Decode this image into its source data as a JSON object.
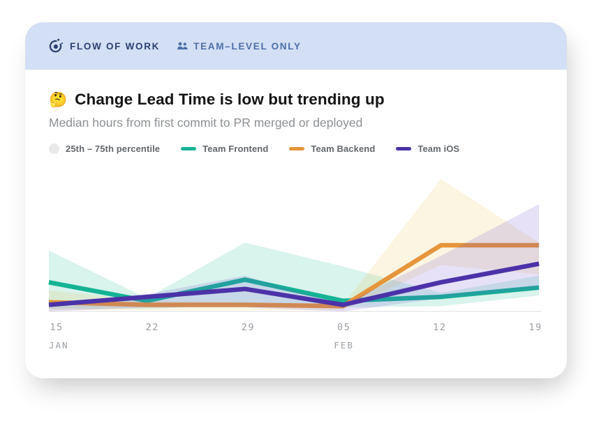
{
  "header": {
    "brand": "FLOW OF WORK",
    "badge": "TEAM–LEVEL ONLY"
  },
  "insight": {
    "emoji": "🤔",
    "title": "Change Lead Time is low but trending up",
    "subtitle": "Median hours from first commit to PR merged or deployed"
  },
  "legend": {
    "band_label": "25th – 75th percentile"
  },
  "colors": {
    "header_bg": "#d3dff4",
    "brand": "#2c4170",
    "badge": "#4c6ea8",
    "title": "#141414",
    "subtitle": "#8d9093",
    "tick": "#9b9fa4",
    "axis": "#e9e9e9",
    "band_swatch": "#e9e9e9"
  },
  "chart_data": {
    "type": "line",
    "title": "Change Lead Time is low but trending up",
    "subtitle": "Median hours from first commit to PR merged or deployed",
    "unit": "hours",
    "y_axis_visible": false,
    "grid": false,
    "legend_position": "top",
    "ylim": [
      0,
      100
    ],
    "x_tick_labels": [
      "15",
      "22",
      "29",
      "05",
      "12",
      "19"
    ],
    "x_month_labels": [
      {
        "label": "JAN",
        "tick_index": 0
      },
      {
        "label": "FEB",
        "tick_index": 3
      }
    ],
    "band_label": "25th – 75th percentile",
    "series": [
      {
        "name": "Team Frontend",
        "color": "#14b394",
        "band_color": "#1db592",
        "median": [
          22,
          8,
          24,
          8,
          11,
          18
        ],
        "p25": [
          2,
          2,
          5,
          3,
          4,
          12
        ],
        "p75": [
          46,
          10,
          52,
          34,
          14,
          27
        ]
      },
      {
        "name": "Team Backend",
        "color": "#e5953a",
        "band_color": "#e8c14e",
        "median": [
          7,
          5,
          5,
          4,
          50,
          50
        ],
        "p25": [
          1,
          1,
          1,
          1,
          35,
          28
        ],
        "p75": [
          16,
          8,
          7,
          5,
          100,
          52
        ]
      },
      {
        "name": "Team iOS",
        "color": "#4b32a8",
        "band_color": "#6a4fd0",
        "median": [
          5,
          11,
          17,
          5,
          22,
          36
        ],
        "p25": [
          0,
          3,
          3,
          0,
          10,
          17
        ],
        "p75": [
          6,
          13,
          27,
          5,
          42,
          81
        ]
      }
    ]
  }
}
